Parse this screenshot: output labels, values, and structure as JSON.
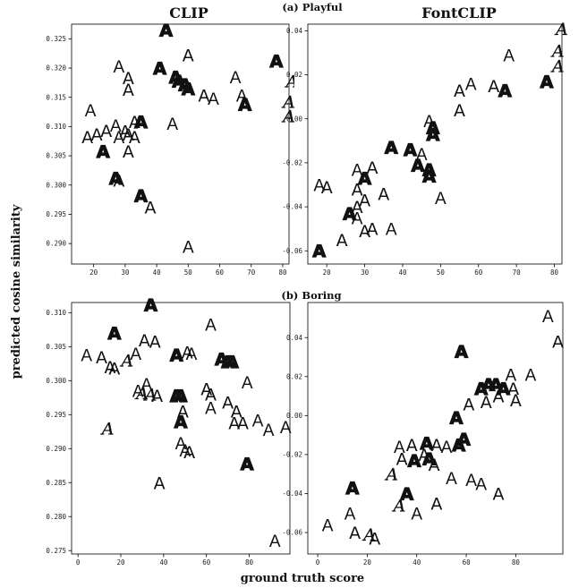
{
  "figure": {
    "column_titles": [
      "CLIP",
      "FontCLIP"
    ],
    "row_titles": [
      "(a) Playful",
      "(b) Boring"
    ],
    "xlabel": "ground truth score",
    "ylabel": "predicted cosine similarity"
  },
  "chart_data": [
    {
      "type": "scatter",
      "title": "CLIP",
      "attribute": "(a) Playful",
      "xlim": [
        13,
        82
      ],
      "ylim": [
        0.2865,
        0.3275
      ],
      "xticks": [
        20,
        30,
        40,
        50,
        60,
        70,
        80
      ],
      "yticks": [
        0.29,
        0.295,
        0.3,
        0.305,
        0.31,
        0.315,
        0.32,
        0.325
      ],
      "ytick_labels": [
        "0.290",
        "0.295",
        "0.300",
        "0.305",
        "0.310",
        "0.315",
        "0.320",
        "0.325"
      ],
      "marker": "glyph A",
      "points": [
        {
          "x": 43,
          "y": 0.3265,
          "s": "bold"
        },
        {
          "x": 78,
          "y": 0.3212,
          "s": "bold"
        },
        {
          "x": 28,
          "y": 0.3203,
          "s": "light"
        },
        {
          "x": 41,
          "y": 0.32,
          "s": "bold"
        },
        {
          "x": 50,
          "y": 0.3222,
          "s": "regular"
        },
        {
          "x": 46,
          "y": 0.3185,
          "s": "bold"
        },
        {
          "x": 47,
          "y": 0.3178,
          "s": "bold"
        },
        {
          "x": 49,
          "y": 0.3172,
          "s": "bold"
        },
        {
          "x": 50,
          "y": 0.3165,
          "s": "bold"
        },
        {
          "x": 31,
          "y": 0.3183,
          "s": "regular"
        },
        {
          "x": 31,
          "y": 0.3163,
          "s": "regular"
        },
        {
          "x": 55,
          "y": 0.3153,
          "s": "regular"
        },
        {
          "x": 58,
          "y": 0.3148,
          "s": "light"
        },
        {
          "x": 65,
          "y": 0.3185,
          "s": "light"
        },
        {
          "x": 67,
          "y": 0.3153,
          "s": "light"
        },
        {
          "x": 68,
          "y": 0.3138,
          "s": "bold"
        },
        {
          "x": 83,
          "y": 0.3178,
          "s": "script"
        },
        {
          "x": 82,
          "y": 0.3143,
          "s": "script"
        },
        {
          "x": 82,
          "y": 0.3118,
          "s": "script"
        },
        {
          "x": 19,
          "y": 0.3128,
          "s": "light"
        },
        {
          "x": 18,
          "y": 0.3082,
          "s": "regular"
        },
        {
          "x": 21,
          "y": 0.3087,
          "s": "regular"
        },
        {
          "x": 24,
          "y": 0.3093,
          "s": "regular"
        },
        {
          "x": 27,
          "y": 0.3102,
          "s": "light"
        },
        {
          "x": 28,
          "y": 0.3082,
          "s": "light"
        },
        {
          "x": 30,
          "y": 0.3092,
          "s": "regular"
        },
        {
          "x": 31,
          "y": 0.3087,
          "s": "regular"
        },
        {
          "x": 33,
          "y": 0.3082,
          "s": "regular"
        },
        {
          "x": 33,
          "y": 0.3108,
          "s": "regular"
        },
        {
          "x": 35,
          "y": 0.3108,
          "s": "bold"
        },
        {
          "x": 23,
          "y": 0.3058,
          "s": "bold"
        },
        {
          "x": 31,
          "y": 0.3058,
          "s": "regular"
        },
        {
          "x": 27,
          "y": 0.3012,
          "s": "bold"
        },
        {
          "x": 28,
          "y": 0.3008,
          "s": "regular"
        },
        {
          "x": 35,
          "y": 0.2982,
          "s": "bold"
        },
        {
          "x": 38,
          "y": 0.2962,
          "s": "regular"
        },
        {
          "x": 45,
          "y": 0.3105,
          "s": "light"
        },
        {
          "x": 50,
          "y": 0.2895,
          "s": "light"
        }
      ]
    },
    {
      "type": "scatter",
      "title": "FontCLIP",
      "attribute": "(a) Playful",
      "xlim": [
        15,
        82
      ],
      "ylim": [
        -0.066,
        0.043
      ],
      "xticks": [
        20,
        30,
        40,
        50,
        60,
        70,
        80
      ],
      "yticks": [
        -0.06,
        -0.04,
        -0.02,
        0.0,
        0.02,
        0.04
      ],
      "ytick_labels": [
        "-0.06",
        "-0.04",
        "-0.02",
        "0.00",
        "0.02",
        "0.04"
      ],
      "marker": "glyph A",
      "points": [
        {
          "x": 82,
          "y": 0.041,
          "s": "script"
        },
        {
          "x": 81,
          "y": 0.031,
          "s": "script"
        },
        {
          "x": 81,
          "y": 0.024,
          "s": "script"
        },
        {
          "x": 78,
          "y": 0.017,
          "s": "bold"
        },
        {
          "x": 68,
          "y": 0.029,
          "s": "light"
        },
        {
          "x": 58,
          "y": 0.016,
          "s": "light"
        },
        {
          "x": 64,
          "y": 0.015,
          "s": "regular"
        },
        {
          "x": 67,
          "y": 0.013,
          "s": "bold"
        },
        {
          "x": 55,
          "y": 0.013,
          "s": "regular"
        },
        {
          "x": 55,
          "y": 0.004,
          "s": "regular"
        },
        {
          "x": 47,
          "y": -0.001,
          "s": "light"
        },
        {
          "x": 48,
          "y": -0.004,
          "s": "bold"
        },
        {
          "x": 48,
          "y": -0.007,
          "s": "bold"
        },
        {
          "x": 37,
          "y": -0.013,
          "s": "bold"
        },
        {
          "x": 42,
          "y": -0.014,
          "s": "bold"
        },
        {
          "x": 45,
          "y": -0.016,
          "s": "light"
        },
        {
          "x": 44,
          "y": -0.021,
          "s": "bold"
        },
        {
          "x": 47,
          "y": -0.023,
          "s": "bold"
        },
        {
          "x": 47,
          "y": -0.026,
          "s": "bold"
        },
        {
          "x": 28,
          "y": -0.023,
          "s": "light"
        },
        {
          "x": 32,
          "y": -0.022,
          "s": "regular"
        },
        {
          "x": 30,
          "y": -0.027,
          "s": "bold"
        },
        {
          "x": 18,
          "y": -0.03,
          "s": "light"
        },
        {
          "x": 20,
          "y": -0.031,
          "s": "regular"
        },
        {
          "x": 28,
          "y": -0.032,
          "s": "regular"
        },
        {
          "x": 35,
          "y": -0.034,
          "s": "regular"
        },
        {
          "x": 30,
          "y": -0.037,
          "s": "regular"
        },
        {
          "x": 28,
          "y": -0.04,
          "s": "regular"
        },
        {
          "x": 26,
          "y": -0.043,
          "s": "bold"
        },
        {
          "x": 28,
          "y": -0.045,
          "s": "light"
        },
        {
          "x": 50,
          "y": -0.036,
          "s": "light"
        },
        {
          "x": 30,
          "y": -0.051,
          "s": "regular"
        },
        {
          "x": 32,
          "y": -0.05,
          "s": "regular"
        },
        {
          "x": 37,
          "y": -0.05,
          "s": "light"
        },
        {
          "x": 24,
          "y": -0.055,
          "s": "regular"
        },
        {
          "x": 18,
          "y": -0.06,
          "s": "bold"
        }
      ]
    },
    {
      "type": "scatter",
      "title": "CLIP",
      "attribute": "(b) Boring",
      "xlim": [
        -3,
        99
      ],
      "ylim": [
        0.2745,
        0.3115
      ],
      "xticks": [
        0,
        20,
        40,
        60,
        80
      ],
      "yticks": [
        0.275,
        0.28,
        0.285,
        0.29,
        0.295,
        0.3,
        0.305,
        0.31
      ],
      "ytick_labels": [
        "0.275",
        "0.280",
        "0.285",
        "0.290",
        "0.295",
        "0.300",
        "0.305",
        "0.310"
      ],
      "marker": "glyph A",
      "points": [
        {
          "x": 34,
          "y": 0.3112,
          "s": "bold"
        },
        {
          "x": 4,
          "y": 0.3038,
          "s": "light"
        },
        {
          "x": 11,
          "y": 0.3035,
          "s": "regular"
        },
        {
          "x": 17,
          "y": 0.307,
          "s": "bold"
        },
        {
          "x": 15,
          "y": 0.302,
          "s": "regular"
        },
        {
          "x": 17,
          "y": 0.3018,
          "s": "regular"
        },
        {
          "x": 23,
          "y": 0.303,
          "s": "script"
        },
        {
          "x": 27,
          "y": 0.304,
          "s": "light"
        },
        {
          "x": 31,
          "y": 0.306,
          "s": "regular"
        },
        {
          "x": 36,
          "y": 0.3058,
          "s": "regular"
        },
        {
          "x": 46,
          "y": 0.3038,
          "s": "bold"
        },
        {
          "x": 51,
          "y": 0.3042,
          "s": "light"
        },
        {
          "x": 53,
          "y": 0.304,
          "s": "light"
        },
        {
          "x": 62,
          "y": 0.3083,
          "s": "light"
        },
        {
          "x": 67,
          "y": 0.3032,
          "s": "bold"
        },
        {
          "x": 70,
          "y": 0.3028,
          "s": "bold"
        },
        {
          "x": 72,
          "y": 0.3028,
          "s": "bold"
        },
        {
          "x": 28,
          "y": 0.2985,
          "s": "light"
        },
        {
          "x": 32,
          "y": 0.2995,
          "s": "light"
        },
        {
          "x": 30,
          "y": 0.2982,
          "s": "script"
        },
        {
          "x": 34,
          "y": 0.298,
          "s": "script"
        },
        {
          "x": 37,
          "y": 0.2978,
          "s": "regular"
        },
        {
          "x": 46,
          "y": 0.2978,
          "s": "bold"
        },
        {
          "x": 48,
          "y": 0.2978,
          "s": "bold"
        },
        {
          "x": 60,
          "y": 0.2988,
          "s": "regular"
        },
        {
          "x": 62,
          "y": 0.298,
          "s": "regular"
        },
        {
          "x": 70,
          "y": 0.2968,
          "s": "regular"
        },
        {
          "x": 74,
          "y": 0.2955,
          "s": "regular"
        },
        {
          "x": 79,
          "y": 0.2998,
          "s": "light"
        },
        {
          "x": 49,
          "y": 0.2955,
          "s": "regular"
        },
        {
          "x": 62,
          "y": 0.296,
          "s": "light"
        },
        {
          "x": 48,
          "y": 0.294,
          "s": "bold"
        },
        {
          "x": 73,
          "y": 0.2938,
          "s": "regular"
        },
        {
          "x": 77,
          "y": 0.2938,
          "s": "regular"
        },
        {
          "x": 84,
          "y": 0.2942,
          "s": "light"
        },
        {
          "x": 89,
          "y": 0.2928,
          "s": "light"
        },
        {
          "x": 97,
          "y": 0.2932,
          "s": "light"
        },
        {
          "x": 14,
          "y": 0.293,
          "s": "script"
        },
        {
          "x": 48,
          "y": 0.2908,
          "s": "light"
        },
        {
          "x": 50,
          "y": 0.2898,
          "s": "light"
        },
        {
          "x": 52,
          "y": 0.2895,
          "s": "regular"
        },
        {
          "x": 79,
          "y": 0.2878,
          "s": "bold"
        },
        {
          "x": 38,
          "y": 0.285,
          "s": "regular"
        },
        {
          "x": 92,
          "y": 0.2765,
          "s": "light"
        }
      ]
    },
    {
      "type": "scatter",
      "title": "FontCLIP",
      "attribute": "(b) Boring",
      "xlim": [
        -4,
        99
      ],
      "ylim": [
        -0.071,
        0.058
      ],
      "xticks": [
        0,
        20,
        40,
        60,
        80
      ],
      "yticks": [
        -0.06,
        -0.04,
        -0.02,
        0.0,
        0.02,
        0.04
      ],
      "ytick_labels": [
        "-0.06",
        "-0.04",
        "-0.02",
        "0.00",
        "0.02",
        "0.04"
      ],
      "marker": "glyph A",
      "points": [
        {
          "x": 93,
          "y": 0.051,
          "s": "light"
        },
        {
          "x": 97,
          "y": 0.038,
          "s": "regular"
        },
        {
          "x": 58,
          "y": 0.033,
          "s": "bold"
        },
        {
          "x": 78,
          "y": 0.021,
          "s": "light"
        },
        {
          "x": 86,
          "y": 0.021,
          "s": "light"
        },
        {
          "x": 66,
          "y": 0.014,
          "s": "bold"
        },
        {
          "x": 69,
          "y": 0.016,
          "s": "bold"
        },
        {
          "x": 72,
          "y": 0.016,
          "s": "bold"
        },
        {
          "x": 75,
          "y": 0.014,
          "s": "bold"
        },
        {
          "x": 79,
          "y": 0.014,
          "s": "regular"
        },
        {
          "x": 80,
          "y": 0.008,
          "s": "regular"
        },
        {
          "x": 56,
          "y": -0.001,
          "s": "bold"
        },
        {
          "x": 68,
          "y": 0.007,
          "s": "regular"
        },
        {
          "x": 73,
          "y": 0.01,
          "s": "regular"
        },
        {
          "x": 61,
          "y": 0.006,
          "s": "regular"
        },
        {
          "x": 57,
          "y": -0.015,
          "s": "bold"
        },
        {
          "x": 59,
          "y": -0.012,
          "s": "bold"
        },
        {
          "x": 33,
          "y": -0.016,
          "s": "light"
        },
        {
          "x": 38,
          "y": -0.015,
          "s": "regular"
        },
        {
          "x": 44,
          "y": -0.014,
          "s": "bold"
        },
        {
          "x": 48,
          "y": -0.015,
          "s": "regular"
        },
        {
          "x": 52,
          "y": -0.016,
          "s": "light"
        },
        {
          "x": 34,
          "y": -0.022,
          "s": "regular"
        },
        {
          "x": 39,
          "y": -0.023,
          "s": "bold"
        },
        {
          "x": 43,
          "y": -0.02,
          "s": "regular"
        },
        {
          "x": 45,
          "y": -0.022,
          "s": "bold"
        },
        {
          "x": 47,
          "y": -0.025,
          "s": "regular"
        },
        {
          "x": 30,
          "y": -0.03,
          "s": "script"
        },
        {
          "x": 54,
          "y": -0.032,
          "s": "light"
        },
        {
          "x": 62,
          "y": -0.033,
          "s": "light"
        },
        {
          "x": 66,
          "y": -0.035,
          "s": "light"
        },
        {
          "x": 73,
          "y": -0.04,
          "s": "regular"
        },
        {
          "x": 14,
          "y": -0.037,
          "s": "bold"
        },
        {
          "x": 36,
          "y": -0.04,
          "s": "bold"
        },
        {
          "x": 33,
          "y": -0.046,
          "s": "script"
        },
        {
          "x": 48,
          "y": -0.045,
          "s": "regular"
        },
        {
          "x": 40,
          "y": -0.05,
          "s": "light"
        },
        {
          "x": 13,
          "y": -0.05,
          "s": "light"
        },
        {
          "x": 4,
          "y": -0.056,
          "s": "light"
        },
        {
          "x": 15,
          "y": -0.06,
          "s": "regular"
        },
        {
          "x": 21,
          "y": -0.061,
          "s": "script"
        },
        {
          "x": 23,
          "y": -0.063,
          "s": "regular"
        }
      ]
    }
  ]
}
